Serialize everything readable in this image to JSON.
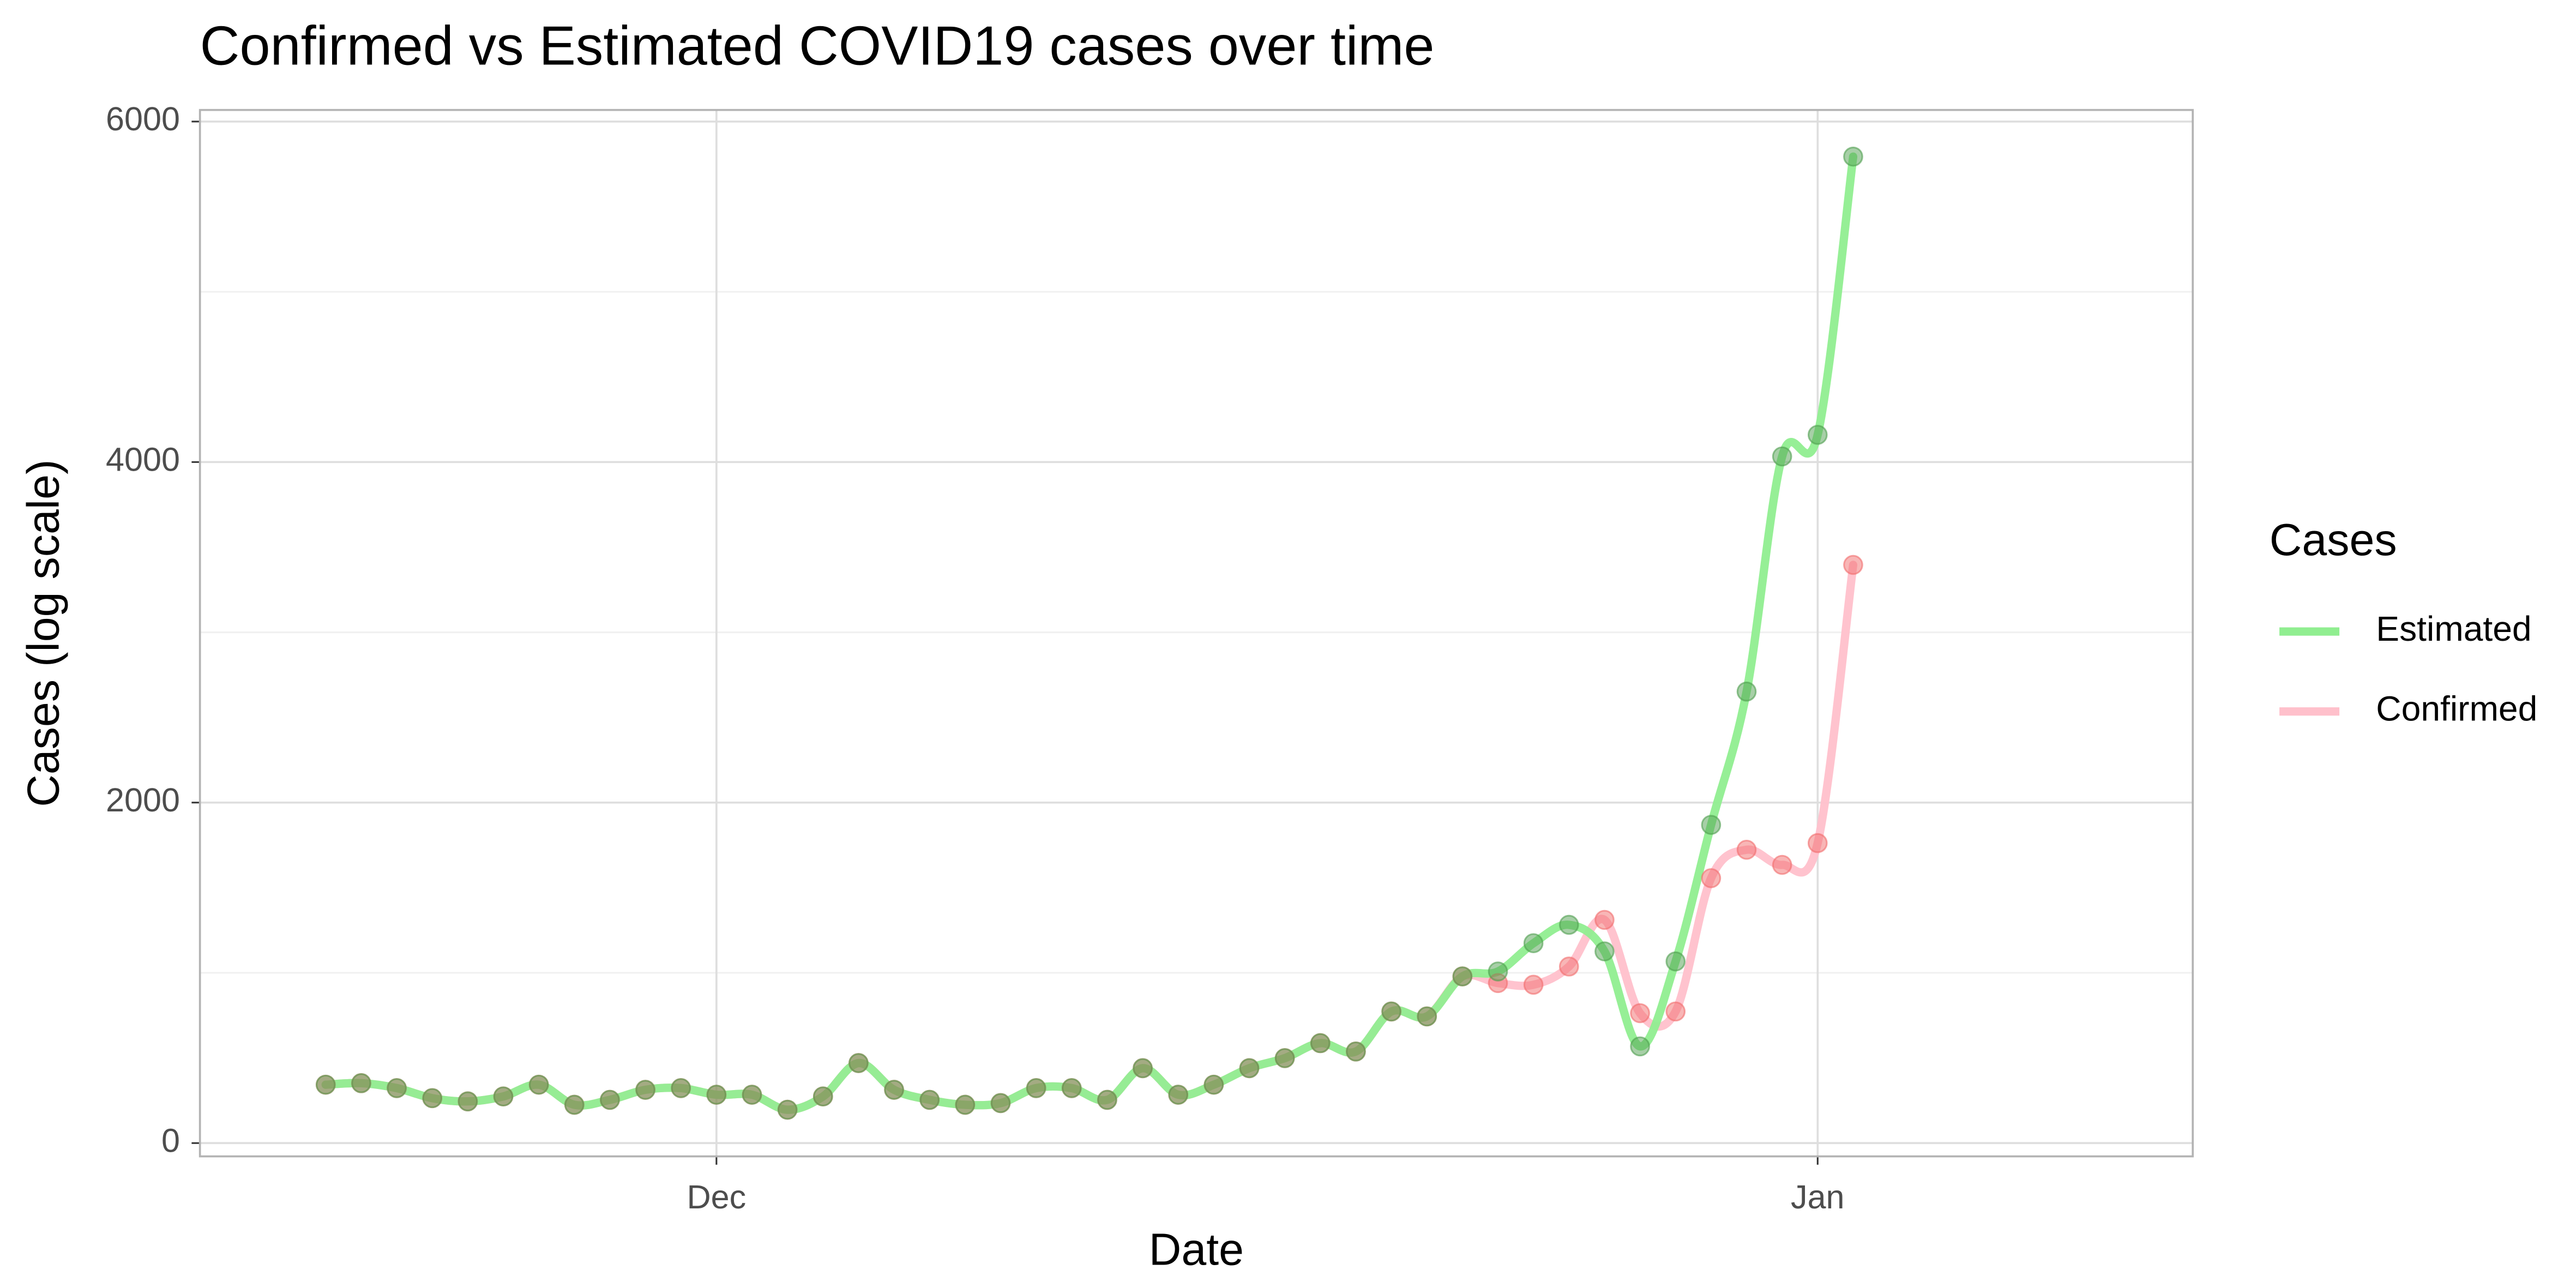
{
  "chart_data": {
    "type": "line",
    "title": "Confirmed vs Estimated COVID19 cases over time",
    "x_label": "Date",
    "y_label": "Cases (log scale)",
    "legend_title": "Cases",
    "x": [
      -11,
      -10,
      -9,
      -8,
      -7,
      -6,
      -5,
      -4,
      -3,
      -2,
      -1,
      0,
      1,
      2,
      3,
      4,
      5,
      6,
      7,
      8,
      9,
      10,
      11,
      12,
      13,
      14,
      15,
      16,
      17,
      18,
      19,
      20,
      21,
      22,
      23,
      24,
      25,
      26,
      27,
      28,
      29,
      30,
      31,
      32
    ],
    "xlim": [
      -14.54,
      41.56
    ],
    "xticks": [
      {
        "value": 0,
        "label": "Dec"
      },
      {
        "value": 31,
        "label": "Jan"
      }
    ],
    "ylim": [
      -78,
      6068
    ],
    "yticks": [
      0,
      2000,
      4000,
      6000
    ],
    "grid": true,
    "legend": "right",
    "series": [
      {
        "name": "Estimated",
        "color": "#90ee90",
        "point_color": "#4f9f4f",
        "values": [
          343,
          352,
          323,
          264,
          245,
          274,
          343,
          225,
          254,
          313,
          323,
          284,
          284,
          196,
          274,
          470,
          313,
          254,
          225,
          235,
          323,
          323,
          254,
          440,
          284,
          343,
          440,
          499,
          587,
          538,
          773,
          744,
          979,
          1008,
          1174,
          1282,
          1126,
          568,
          1067,
          1869,
          2652,
          4033,
          4160,
          5794
        ]
      },
      {
        "name": "Confirmed",
        "color": "#ffc0cb",
        "point_color": "#f26d6d",
        "values": [
          343,
          352,
          323,
          264,
          245,
          274,
          343,
          225,
          254,
          313,
          323,
          284,
          284,
          196,
          274,
          470,
          313,
          254,
          225,
          235,
          323,
          323,
          254,
          440,
          284,
          343,
          440,
          499,
          587,
          538,
          773,
          744,
          979,
          940,
          930,
          1037,
          1311,
          763,
          773,
          1556,
          1723,
          1634,
          1762,
          3396
        ]
      }
    ]
  }
}
